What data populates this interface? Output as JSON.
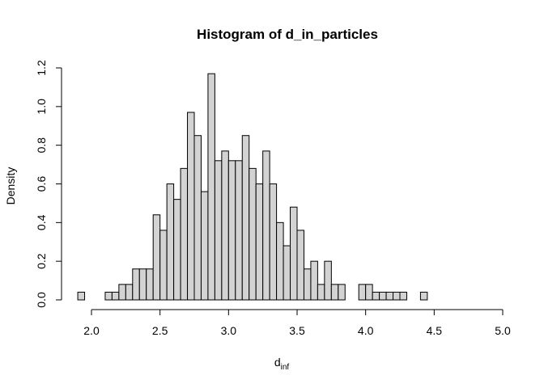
{
  "chart_data": {
    "type": "bar",
    "title": "Histogram of d_in_particles",
    "xlabel": {
      "main": "d",
      "subscript": "inf"
    },
    "ylabel": "Density",
    "xlim": [
      1.85,
      5.0
    ],
    "ylim": [
      0,
      1.2
    ],
    "bin_width": 0.05,
    "bin_start": 1.9,
    "x_ticks": [
      {
        "value": 2.0,
        "label": "2.0"
      },
      {
        "value": 2.5,
        "label": "2.5"
      },
      {
        "value": 3.0,
        "label": "3.0"
      },
      {
        "value": 3.5,
        "label": "3.5"
      },
      {
        "value": 4.0,
        "label": "4.0"
      },
      {
        "value": 4.5,
        "label": "4.5"
      },
      {
        "value": 5.0,
        "label": "5.0"
      }
    ],
    "y_ticks": [
      {
        "value": 0.0,
        "label": "0.0"
      },
      {
        "value": 0.2,
        "label": "0.2"
      },
      {
        "value": 0.4,
        "label": "0.4"
      },
      {
        "value": 0.6,
        "label": "0.6"
      },
      {
        "value": 0.8,
        "label": "0.8"
      },
      {
        "value": 1.0,
        "label": "1.0"
      },
      {
        "value": 1.2,
        "label": "1.2"
      }
    ],
    "values": [
      0.04,
      0.0,
      0.0,
      0.0,
      0.04,
      0.04,
      0.08,
      0.08,
      0.16,
      0.16,
      0.16,
      0.44,
      0.36,
      0.6,
      0.52,
      0.68,
      0.97,
      0.85,
      0.56,
      1.17,
      0.72,
      0.77,
      0.72,
      0.72,
      0.85,
      0.68,
      0.6,
      0.77,
      0.6,
      0.4,
      0.28,
      0.48,
      0.36,
      0.16,
      0.2,
      0.08,
      0.2,
      0.08,
      0.08,
      0.0,
      0.0,
      0.08,
      0.08,
      0.04,
      0.04,
      0.04,
      0.04,
      0.04,
      0.0,
      0.0,
      0.04
    ],
    "bar_fill": "#d3d3d3",
    "bar_stroke": "#000000",
    "grid": false,
    "legend": "none"
  }
}
